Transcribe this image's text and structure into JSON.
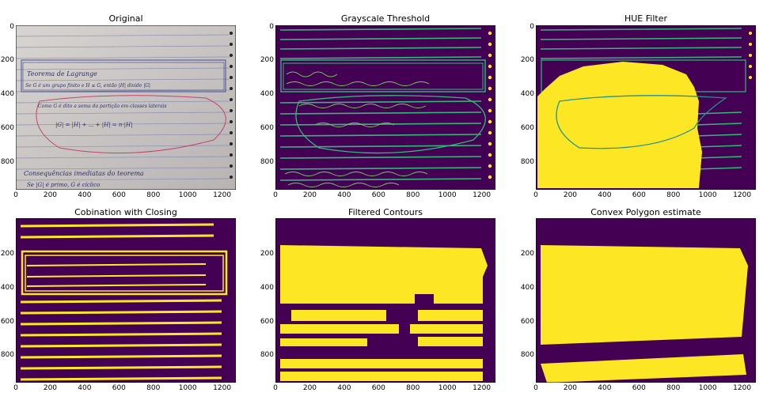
{
  "figure": {
    "panels": [
      {
        "title": "Original"
      },
      {
        "title": "Grayscale Threshold"
      },
      {
        "title": "HUE Filter"
      },
      {
        "title": "Cobination with Closing"
      },
      {
        "title": "Filtered Contours"
      },
      {
        "title": "Convex Polygon estimate"
      }
    ],
    "x_ticks": [
      "0",
      "200",
      "400",
      "600",
      "800",
      "1000",
      "1200"
    ],
    "y_ticks_top": [
      "0",
      "200",
      "400",
      "600",
      "800"
    ],
    "y_ticks_bottom": [
      "200",
      "400",
      "600",
      "800"
    ],
    "colors": {
      "background_dark": "#440154",
      "foreground_yellow": "#fde725",
      "teal_stroke": "#35b779",
      "paper": "#cfcac8",
      "ink": "#2b2f6e",
      "red_ink": "#c2456b"
    },
    "handwriting": {
      "line1": "Teorema de Lagrange",
      "line2": "Se G é um grupo finito e H ≤ G, então |H| divide |G|",
      "line3": "Como G é dito a soma da partição em classes laterais",
      "line4": "|G| = |H| + ... + |H| = n·|H|",
      "line5": "Consequências imediatas do teorema",
      "line6": "Se |G| é primo, G é cíclico"
    }
  }
}
